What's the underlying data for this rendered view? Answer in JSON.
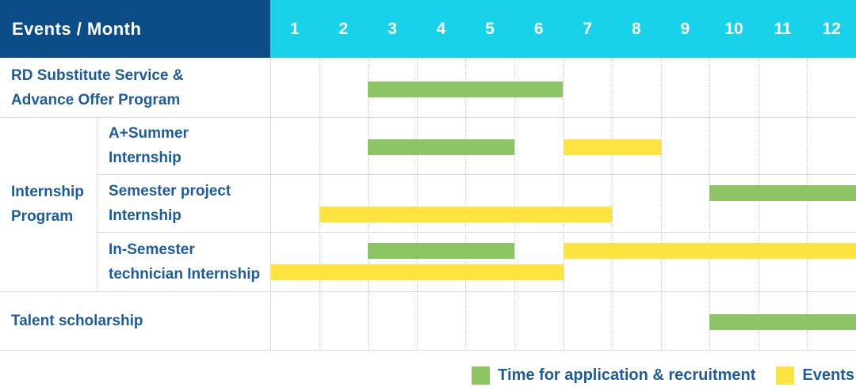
{
  "colors": {
    "navy": "#0d4d87",
    "cyan": "#17d2e9",
    "recruitment_green": "#8cc563",
    "events_yellow": "#ffe33e",
    "label_blue": "#1c5c9d"
  },
  "table": {
    "header": {
      "title": "Events / Month",
      "months": [
        "1",
        "2",
        "3",
        "4",
        "5",
        "6",
        "7",
        "8",
        "9",
        "10",
        "11",
        "12"
      ]
    },
    "group_label": {
      "lines": [
        "Internship",
        "Program"
      ]
    },
    "rows": [
      {
        "name": "RD Substitute Service & Advance Offer Program",
        "label_lines": [
          "RD Substitute Service &",
          "Advance Offer Program"
        ],
        "sub": false,
        "bars": [
          {
            "color_key": "recruitment_green",
            "kind": "recruitment-bar",
            "from": 3,
            "to": 6,
            "lane": "center"
          }
        ]
      },
      {
        "name": "A+Summer Internship",
        "label_lines": [
          "A+Summer",
          "Internship"
        ],
        "sub": true,
        "bars": [
          {
            "color_key": "recruitment_green",
            "kind": "recruitment-bar",
            "from": 3,
            "to": 5,
            "lane": "center"
          },
          {
            "color_key": "events_yellow",
            "kind": "events-bar",
            "from": 7,
            "to": 8,
            "lane": "center"
          }
        ]
      },
      {
        "name": "Semester project Internship",
        "label_lines": [
          "Semester project",
          "Internship"
        ],
        "sub": true,
        "bars": [
          {
            "color_key": "recruitment_green",
            "kind": "recruitment-bar",
            "from": 10,
            "to": 12,
            "lane": "upper"
          },
          {
            "color_key": "events_yellow",
            "kind": "events-bar",
            "from": 2,
            "to": 7,
            "lane": "lower"
          }
        ]
      },
      {
        "name": "In-Semester technician Internship",
        "label_lines": [
          "In-Semester",
          "technician Internship"
        ],
        "sub": true,
        "bars": [
          {
            "color_key": "recruitment_green",
            "kind": "recruitment-bar",
            "from": 3,
            "to": 5,
            "lane": "upper"
          },
          {
            "color_key": "events_yellow",
            "kind": "events-bar",
            "from": 7,
            "to": 12,
            "lane": "upper"
          },
          {
            "color_key": "events_yellow",
            "kind": "events-bar",
            "from": 1,
            "to": 6,
            "lane": "lower"
          }
        ]
      },
      {
        "name": "Talent scholarship",
        "label_lines": [
          "Talent scholarship"
        ],
        "sub": false,
        "bars": [
          {
            "color_key": "recruitment_green",
            "kind": "recruitment-bar",
            "from": 10,
            "to": 12,
            "lane": "center"
          }
        ]
      }
    ]
  },
  "legend": [
    {
      "key": "recruitment_green",
      "label": "Time for application & recruitment"
    },
    {
      "key": "events_yellow",
      "label": "Events"
    }
  ],
  "chart_data": {
    "type": "table",
    "subtype": "gantt-schedule",
    "title": "Events / Month",
    "x_axis": {
      "label": "Month",
      "ticks": [
        1,
        2,
        3,
        4,
        5,
        6,
        7,
        8,
        9,
        10,
        11,
        12
      ],
      "range": [
        1,
        12
      ]
    },
    "legend_entries": [
      "Time for application & recruitment",
      "Events"
    ],
    "rows": [
      {
        "name": "RD Substitute Service & Advance Offer Program",
        "group": null,
        "recruitment_months": [
          [
            3,
            6
          ]
        ],
        "events_months": []
      },
      {
        "name": "A+Summer Internship",
        "group": "Internship Program",
        "recruitment_months": [
          [
            3,
            5
          ]
        ],
        "events_months": [
          [
            7,
            8
          ]
        ]
      },
      {
        "name": "Semester project Internship",
        "group": "Internship Program",
        "recruitment_months": [
          [
            10,
            12
          ]
        ],
        "events_months": [
          [
            2,
            7
          ]
        ]
      },
      {
        "name": "In-Semester technician Internship",
        "group": "Internship Program",
        "recruitment_months": [
          [
            3,
            5
          ]
        ],
        "events_months": [
          [
            7,
            12
          ],
          [
            1,
            6
          ]
        ]
      },
      {
        "name": "Talent scholarship",
        "group": null,
        "recruitment_months": [
          [
            10,
            12
          ]
        ],
        "events_months": []
      }
    ]
  }
}
